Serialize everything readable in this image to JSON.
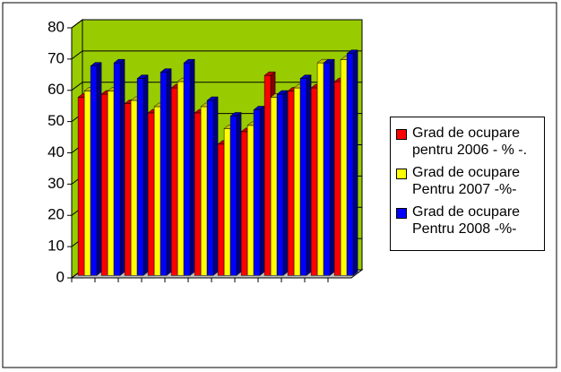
{
  "chart_data": {
    "type": "bar3d",
    "categories": [
      null,
      null,
      null,
      null,
      null,
      null,
      null,
      null,
      null,
      null,
      null,
      null
    ],
    "series": [
      {
        "name": "Grad de ocupare pentru 2006 - % -.",
        "color": "#ff0000",
        "values": [
          57,
          58,
          55,
          52,
          60,
          52,
          42,
          46,
          64,
          59,
          60,
          62
        ]
      },
      {
        "name": "Grad de ocupare Pentru 2007 -%-",
        "color": "#ffff00",
        "values": [
          59,
          59,
          56,
          54,
          62,
          54,
          47,
          48,
          57,
          60,
          68,
          69
        ]
      },
      {
        "name": "Grad de ocupare Pentru 2008 -%-",
        "color": "#0000ff",
        "values": [
          67,
          68,
          63,
          65,
          68,
          56,
          51,
          53,
          58,
          63,
          68,
          71
        ]
      }
    ],
    "ylim": [
      0,
      80
    ],
    "yticks": [
      0,
      10,
      20,
      30,
      40,
      50,
      60,
      70,
      80
    ],
    "grid": true,
    "wall_color": "#99cc00",
    "legend": "right"
  }
}
